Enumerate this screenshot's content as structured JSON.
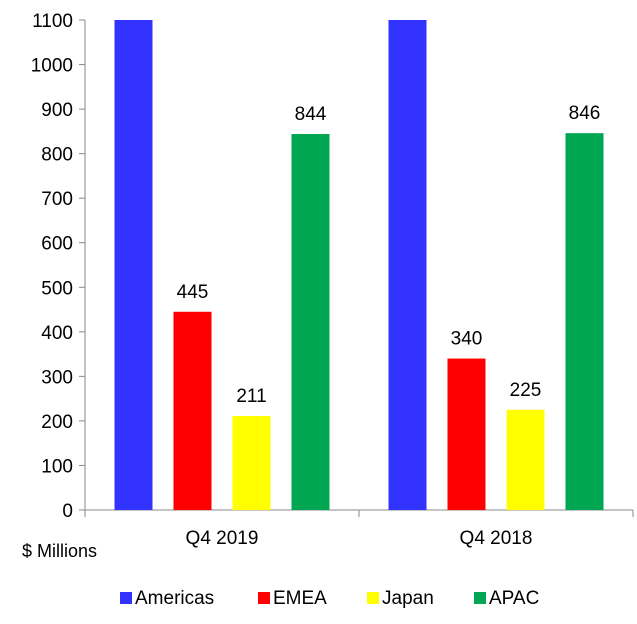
{
  "chart_data": {
    "type": "bar",
    "categories": [
      "Q4 2019",
      "Q4 2018"
    ],
    "series": [
      {
        "name": "Americas",
        "values": [
          1100,
          1100
        ],
        "color": "#3333ff",
        "value_labels": [
          null,
          null
        ]
      },
      {
        "name": "EMEA",
        "values": [
          445,
          340
        ],
        "color": "#ff0000",
        "value_labels": [
          "445",
          "340"
        ]
      },
      {
        "name": "Japan",
        "values": [
          211,
          225
        ],
        "color": "#ffff00",
        "value_labels": [
          "211",
          "225"
        ]
      },
      {
        "name": "APAC",
        "values": [
          844,
          846
        ],
        "color": "#00a651",
        "value_labels": [
          "844",
          "846"
        ]
      }
    ],
    "ylim": [
      0,
      1100
    ],
    "yticks": [
      "0",
      "100",
      "200",
      "300",
      "400",
      "500",
      "600",
      "700",
      "800",
      "900",
      "1000",
      "1100"
    ],
    "unit_label": "$ Millions",
    "grid": false,
    "legend_position": "bottom"
  }
}
